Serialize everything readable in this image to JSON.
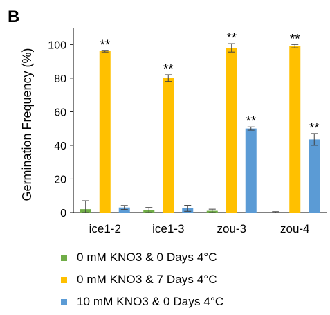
{
  "panel_label": "B",
  "chart_data": {
    "type": "bar",
    "title": "",
    "xlabel": "",
    "ylabel": "Germination Frequency (%)",
    "ylim": [
      0,
      110
    ],
    "yticks": [
      "0",
      "20",
      "40",
      "60",
      "80",
      "100"
    ],
    "categories": [
      "ice1-2",
      "ice1-3",
      "zou-3",
      "zou-4"
    ],
    "series": [
      {
        "name": "0 mM KNO3 & 0 Days 4°C",
        "color": "#70AD47",
        "values": [
          2,
          1.5,
          1,
          0
        ],
        "errors": [
          5,
          1.5,
          1,
          0.5
        ],
        "annotations": [
          "",
          "",
          "",
          ""
        ]
      },
      {
        "name": "0 mM KNO3 & 7 Days 4°C",
        "color": "#FFC000",
        "values": [
          96,
          80,
          98,
          99
        ],
        "errors": [
          0.5,
          2,
          2.5,
          1
        ],
        "annotations": [
          "**",
          "**",
          "**",
          "**"
        ]
      },
      {
        "name": "10 mM KNO3 & 0 Days 4°C",
        "color": "#5B9BD5",
        "values": [
          3,
          2.5,
          50,
          43.5
        ],
        "errors": [
          1.2,
          1.8,
          1,
          3.5
        ],
        "annotations": [
          "",
          "",
          "**",
          "**"
        ]
      }
    ],
    "grid": false,
    "legend_position": "bottom"
  }
}
